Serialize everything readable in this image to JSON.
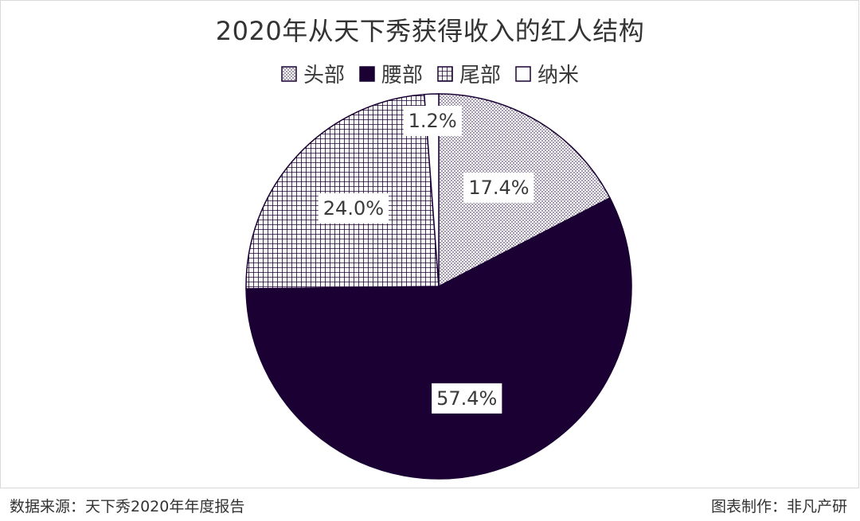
{
  "chart_data": {
    "type": "pie",
    "title": "2020年从天下秀获得收入的红人结构",
    "categories": [
      "头部",
      "腰部",
      "尾部",
      "纳米"
    ],
    "values": [
      17.4,
      57.4,
      24.0,
      1.2
    ],
    "value_labels": [
      "17.4%",
      "57.4%",
      "24.0%",
      "1.2%"
    ],
    "legend_position": "top",
    "slice_styles": [
      {
        "pattern": "dots",
        "fill": "#ffffff",
        "ink": "#1a0033"
      },
      {
        "pattern": "solid",
        "fill": "#1a0033",
        "ink": "#1a0033"
      },
      {
        "pattern": "grid",
        "fill": "#ffffff",
        "ink": "#1a0033"
      },
      {
        "pattern": "none",
        "fill": "#ffffff",
        "ink": "#1a0033"
      }
    ]
  },
  "footer": {
    "source": "数据来源：天下秀2020年年度报告",
    "maker": "图表制作：非凡产研"
  }
}
